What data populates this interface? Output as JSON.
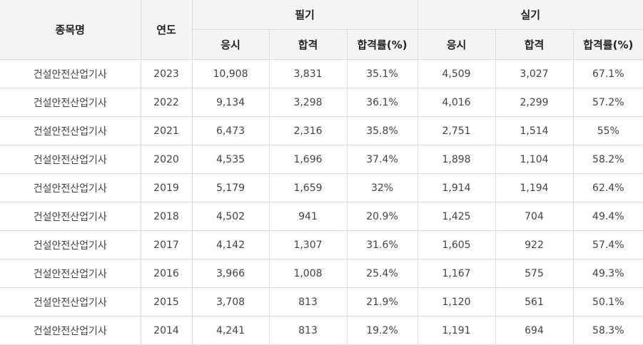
{
  "header": {
    "subject": "종목명",
    "year": "연도",
    "written": "필기",
    "practical": "실기",
    "applicants": "응시",
    "passed": "합격",
    "rate": "합격률(%)"
  },
  "rows": [
    {
      "subject": "건설안전산업기사",
      "year": "2023",
      "w_app": "10,908",
      "w_pass": "3,831",
      "w_rate": "35.1%",
      "p_app": "4,509",
      "p_pass": "3,027",
      "p_rate": "67.1%"
    },
    {
      "subject": "건설안전산업기사",
      "year": "2022",
      "w_app": "9,134",
      "w_pass": "3,298",
      "w_rate": "36.1%",
      "p_app": "4,016",
      "p_pass": "2,299",
      "p_rate": "57.2%"
    },
    {
      "subject": "건설안전산업기사",
      "year": "2021",
      "w_app": "6,473",
      "w_pass": "2,316",
      "w_rate": "35.8%",
      "p_app": "2,751",
      "p_pass": "1,514",
      "p_rate": "55%"
    },
    {
      "subject": "건설안전산업기사",
      "year": "2020",
      "w_app": "4,535",
      "w_pass": "1,696",
      "w_rate": "37.4%",
      "p_app": "1,898",
      "p_pass": "1,104",
      "p_rate": "58.2%"
    },
    {
      "subject": "건설안전산업기사",
      "year": "2019",
      "w_app": "5,179",
      "w_pass": "1,659",
      "w_rate": "32%",
      "p_app": "1,914",
      "p_pass": "1,194",
      "p_rate": "62.4%"
    },
    {
      "subject": "건설안전산업기사",
      "year": "2018",
      "w_app": "4,502",
      "w_pass": "941",
      "w_rate": "20.9%",
      "p_app": "1,425",
      "p_pass": "704",
      "p_rate": "49.4%"
    },
    {
      "subject": "건설안전산업기사",
      "year": "2017",
      "w_app": "4,142",
      "w_pass": "1,307",
      "w_rate": "31.6%",
      "p_app": "1,605",
      "p_pass": "922",
      "p_rate": "57.4%"
    },
    {
      "subject": "건설안전산업기사",
      "year": "2016",
      "w_app": "3,966",
      "w_pass": "1,008",
      "w_rate": "25.4%",
      "p_app": "1,167",
      "p_pass": "575",
      "p_rate": "49.3%"
    },
    {
      "subject": "건설안전산업기사",
      "year": "2015",
      "w_app": "3,708",
      "w_pass": "813",
      "w_rate": "21.9%",
      "p_app": "1,120",
      "p_pass": "561",
      "p_rate": "50.1%"
    },
    {
      "subject": "건설안전산업기사",
      "year": "2014",
      "w_app": "4,241",
      "w_pass": "813",
      "w_rate": "19.2%",
      "p_app": "1,191",
      "p_pass": "694",
      "p_rate": "58.3%"
    }
  ]
}
